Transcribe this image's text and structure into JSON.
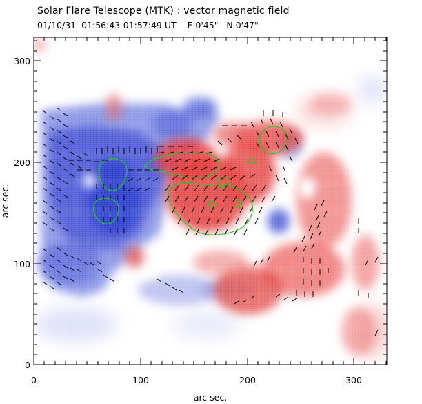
{
  "header": {
    "title": "Solar Flare Telescope (MTK) : vector magnetic field",
    "subtitle": "01/10/31  01:56:43-01:57:49 UT    E 0'45\"   N 0'47\""
  },
  "axes": {
    "xlabel": "arc sec.",
    "ylabel": "arc sec.",
    "x_ticks": [
      "0",
      "100",
      "200",
      "300"
    ],
    "y_ticks": [
      "0",
      "100",
      "200",
      "300"
    ],
    "x_range": [
      0,
      340
    ],
    "y_range": [
      0,
      325
    ]
  },
  "colors": {
    "positive_polarity": "#e8403f",
    "negative_polarity": "#4050d8",
    "contour": "#22cc22",
    "vectors": "#000000"
  }
}
